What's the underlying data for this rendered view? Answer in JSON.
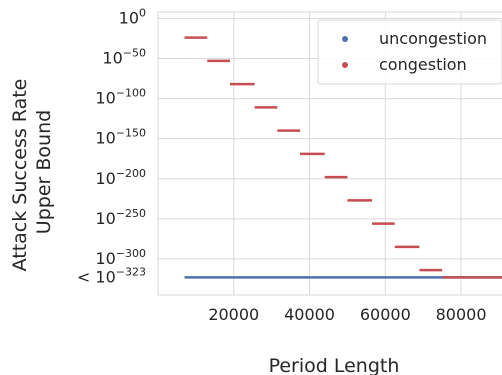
{
  "chart_data": {
    "type": "scatter",
    "xlabel": "Period Length",
    "ylabel_lines": [
      "Attack Success Rate",
      "Upper Bound"
    ],
    "xlim": [
      0,
      90800
    ],
    "ylim": [
      -345,
      8
    ],
    "xticks": [
      {
        "value": 20000,
        "label": "20000"
      },
      {
        "value": 40000,
        "label": "40000"
      },
      {
        "value": 60000,
        "label": "60000"
      },
      {
        "value": 80000,
        "label": "80000"
      }
    ],
    "yticks": [
      {
        "value": 0,
        "base": "10",
        "exp": "0",
        "prefix": ""
      },
      {
        "value": -50,
        "base": "10",
        "exp": "−50",
        "prefix": ""
      },
      {
        "value": -100,
        "base": "10",
        "exp": "−100",
        "prefix": ""
      },
      {
        "value": -150,
        "base": "10",
        "exp": "−150",
        "prefix": ""
      },
      {
        "value": -200,
        "base": "10",
        "exp": "−200",
        "prefix": ""
      },
      {
        "value": -250,
        "base": "10",
        "exp": "−250",
        "prefix": ""
      },
      {
        "value": -300,
        "base": "10",
        "exp": "−300",
        "prefix": ""
      },
      {
        "value": -323,
        "base": "10",
        "exp": "−323",
        "prefix": "< "
      }
    ],
    "grid": true,
    "legend_position": "top-right",
    "series": [
      {
        "name": "uncongestion",
        "color": "#4c72b0",
        "segments": [
          {
            "x0": 7000,
            "x1": 100000,
            "y": -323
          }
        ]
      },
      {
        "name": "congestion",
        "color": "#c44e52",
        "segments": [
          {
            "x0": 7000,
            "x1": 13000,
            "y": -24
          },
          {
            "x0": 13000,
            "x1": 19000,
            "y": -53
          },
          {
            "x0": 19000,
            "x1": 25500,
            "y": -82
          },
          {
            "x0": 25500,
            "x1": 31500,
            "y": -111
          },
          {
            "x0": 31500,
            "x1": 37500,
            "y": -140
          },
          {
            "x0": 37500,
            "x1": 44000,
            "y": -169
          },
          {
            "x0": 44000,
            "x1": 50000,
            "y": -198
          },
          {
            "x0": 50000,
            "x1": 56500,
            "y": -227
          },
          {
            "x0": 56500,
            "x1": 62500,
            "y": -256
          },
          {
            "x0": 62500,
            "x1": 69000,
            "y": -285
          },
          {
            "x0": 69000,
            "x1": 75000,
            "y": -314
          },
          {
            "x0": 75000,
            "x1": 100000,
            "y": -323
          }
        ]
      }
    ]
  }
}
